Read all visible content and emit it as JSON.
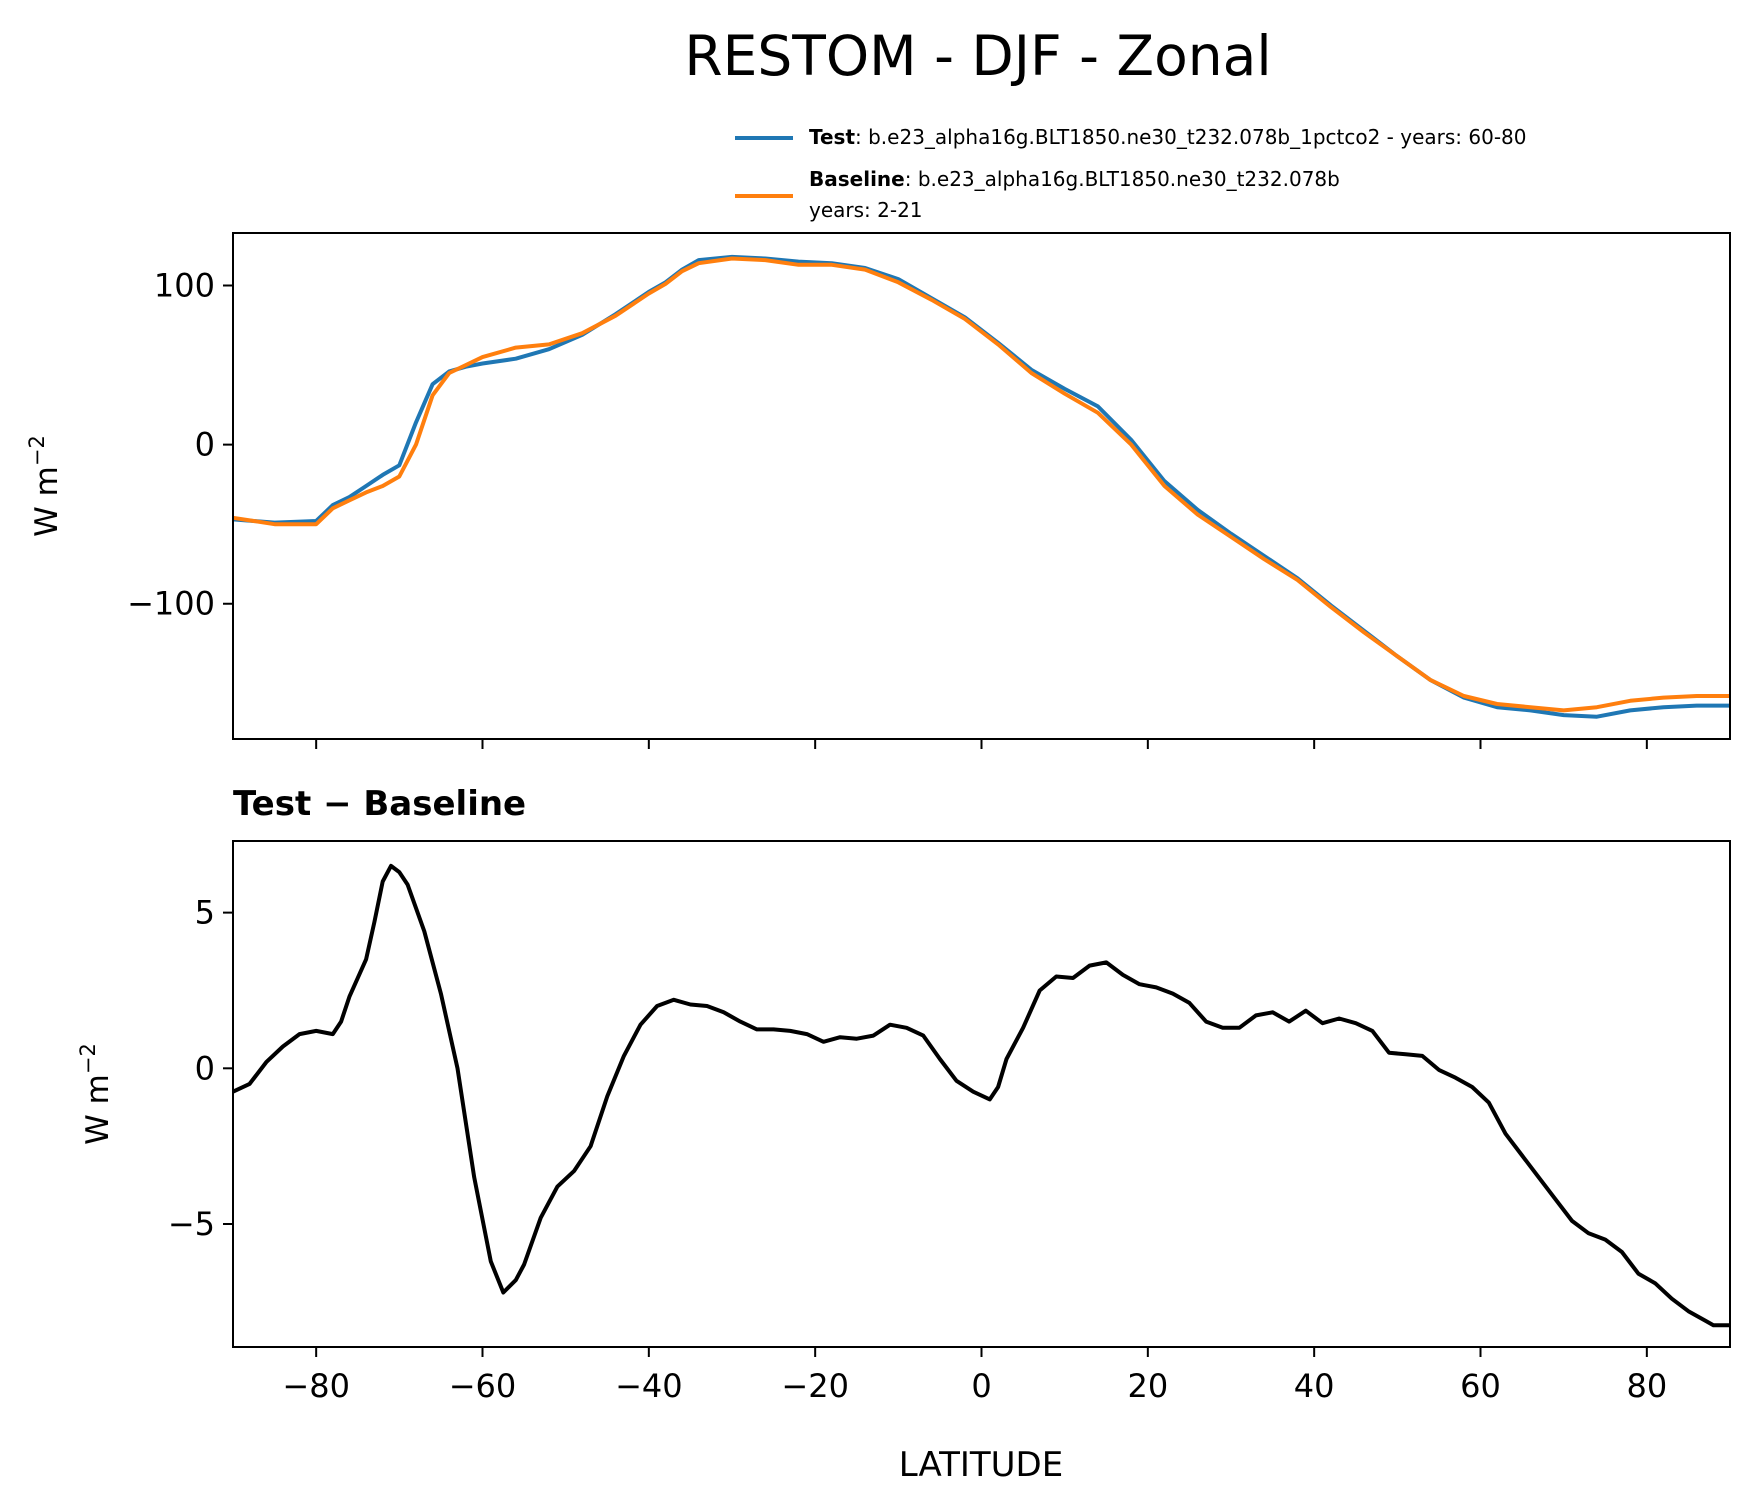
{
  "title": "RESTOM - DJF - Zonal",
  "legend": {
    "test_label": "Test",
    "test_text": ": b.e23_alpha16g.BLT1850.ne30_t232.078b_1pctco2 - years: 60-80",
    "baseline_label": "Baseline",
    "baseline_text": ": b.e23_alpha16g.BLT1850.ne30_t232.078b",
    "baseline_years": "years: 2-21"
  },
  "colors": {
    "test": "#1f77b4",
    "baseline": "#ff7f0e",
    "diff": "#000000"
  },
  "chart_data": [
    {
      "type": "line",
      "title": "",
      "xlabel": "",
      "ylabel": "W m",
      "ylabel_sup": "−2",
      "xlim": [
        -90,
        90
      ],
      "ylim": [
        -185,
        133
      ],
      "xticks": [
        -80,
        -60,
        -40,
        -20,
        0,
        20,
        40,
        60,
        80
      ],
      "yticks": [
        100,
        0,
        -100
      ],
      "ytick_labels": [
        "100",
        "0",
        "−100"
      ],
      "legend_position": "above",
      "series": [
        {
          "name": "Test",
          "x": [
            -90,
            -85,
            -80,
            -78,
            -76,
            -74,
            -72,
            -70,
            -68,
            -66,
            -64,
            -62,
            -60,
            -56,
            -52,
            -48,
            -44,
            -40,
            -38,
            -36,
            -34,
            -30,
            -26,
            -22,
            -18,
            -14,
            -10,
            -6,
            -2,
            2,
            6,
            10,
            14,
            18,
            22,
            26,
            30,
            34,
            38,
            42,
            46,
            50,
            54,
            58,
            62,
            66,
            70,
            74,
            78,
            82,
            86,
            90
          ],
          "y": [
            -47,
            -49,
            -48,
            -38,
            -33,
            -26,
            -19,
            -13,
            14,
            38,
            46,
            49,
            51,
            54,
            60,
            69,
            82,
            96,
            102,
            110,
            116,
            118,
            117,
            115,
            114,
            111,
            104,
            92,
            80,
            64,
            47,
            35,
            24,
            3,
            -23,
            -41,
            -56,
            -70,
            -84,
            -101,
            -117,
            -133,
            -148,
            -159,
            -165,
            -167,
            -170,
            -171,
            -167,
            -165,
            -164,
            -164
          ]
        },
        {
          "name": "Baseline",
          "x": [
            -90,
            -85,
            -80,
            -78,
            -76,
            -74,
            -72,
            -70,
            -68,
            -66,
            -64,
            -62,
            -60,
            -56,
            -52,
            -48,
            -44,
            -40,
            -38,
            -36,
            -34,
            -30,
            -26,
            -22,
            -18,
            -14,
            -10,
            -6,
            -2,
            2,
            6,
            10,
            14,
            18,
            22,
            26,
            30,
            34,
            38,
            42,
            46,
            50,
            54,
            58,
            62,
            66,
            70,
            74,
            78,
            82,
            86,
            90
          ],
          "y": [
            -46,
            -50,
            -50,
            -40,
            -35,
            -30,
            -26,
            -20,
            0,
            31,
            45,
            50,
            55,
            61,
            63,
            70,
            81,
            95,
            101,
            109,
            114,
            117,
            116,
            113,
            113,
            110,
            102,
            91,
            79,
            63,
            45,
            32,
            20,
            0,
            -26,
            -44,
            -58,
            -72,
            -85,
            -102,
            -118,
            -133,
            -148,
            -158,
            -163,
            -165,
            -167,
            -165,
            -161,
            -159,
            -158,
            -158
          ]
        }
      ]
    },
    {
      "type": "line",
      "title": "Test − Baseline",
      "xlabel": "LATITUDE",
      "ylabel": "W m",
      "ylabel_sup": "−2",
      "xlim": [
        -90,
        90
      ],
      "ylim": [
        -8.95,
        7.3
      ],
      "xticks": [
        -80,
        -60,
        -40,
        -20,
        0,
        20,
        40,
        60,
        80
      ],
      "xtick_labels": [
        "−80",
        "−60",
        "−40",
        "−20",
        "0",
        "20",
        "40",
        "60",
        "80"
      ],
      "yticks": [
        5,
        0,
        -5
      ],
      "ytick_labels": [
        "5",
        "0",
        "−5"
      ],
      "series": [
        {
          "name": "Test − Baseline",
          "x": [
            -90,
            -88,
            -86,
            -84,
            -82,
            -80,
            -78,
            -77,
            -76,
            -74,
            -73,
            -72,
            -71,
            -70,
            -69,
            -67,
            -65,
            -63,
            -61,
            -59,
            -57.5,
            -56,
            -55,
            -53,
            -51,
            -49,
            -47,
            -45,
            -43,
            -41,
            -39,
            -37,
            -35,
            -33,
            -31,
            -29,
            -27,
            -25,
            -23,
            -21,
            -19,
            -17,
            -15,
            -13,
            -11,
            -9,
            -7,
            -5,
            -3,
            -1,
            1,
            2,
            3,
            5,
            7,
            9,
            11,
            13,
            15,
            17,
            19,
            21,
            23,
            25,
            27,
            29,
            31,
            33,
            35,
            37,
            39,
            41,
            43,
            45,
            47,
            49,
            51,
            53,
            55,
            57,
            59,
            61,
            63,
            65,
            67,
            69,
            71,
            73,
            75,
            77,
            79,
            81,
            83,
            85,
            87,
            88,
            90
          ],
          "y": [
            -0.75,
            -0.5,
            0.2,
            0.7,
            1.1,
            1.2,
            1.1,
            1.5,
            2.3,
            3.5,
            4.7,
            6.0,
            6.5,
            6.3,
            5.9,
            4.4,
            2.4,
            0.0,
            -3.5,
            -6.2,
            -7.2,
            -6.8,
            -6.3,
            -4.8,
            -3.8,
            -3.3,
            -2.5,
            -0.9,
            0.4,
            1.4,
            2.0,
            2.2,
            2.05,
            2.0,
            1.8,
            1.5,
            1.25,
            1.25,
            1.2,
            1.1,
            0.85,
            1.0,
            0.95,
            1.05,
            1.4,
            1.3,
            1.05,
            0.3,
            -0.4,
            -0.75,
            -1.0,
            -0.6,
            0.3,
            1.3,
            2.5,
            2.95,
            2.9,
            3.3,
            3.4,
            3.0,
            2.7,
            2.6,
            2.4,
            2.1,
            1.5,
            1.3,
            1.3,
            1.7,
            1.8,
            1.5,
            1.85,
            1.45,
            1.6,
            1.45,
            1.2,
            0.5,
            0.45,
            0.4,
            -0.05,
            -0.3,
            -0.6,
            -1.1,
            -2.1,
            -2.8,
            -3.5,
            -4.2,
            -4.9,
            -5.3,
            -5.5,
            -5.9,
            -6.6,
            -6.9,
            -7.4,
            -7.8,
            -8.1,
            -8.25,
            -8.25
          ]
        }
      ]
    }
  ]
}
